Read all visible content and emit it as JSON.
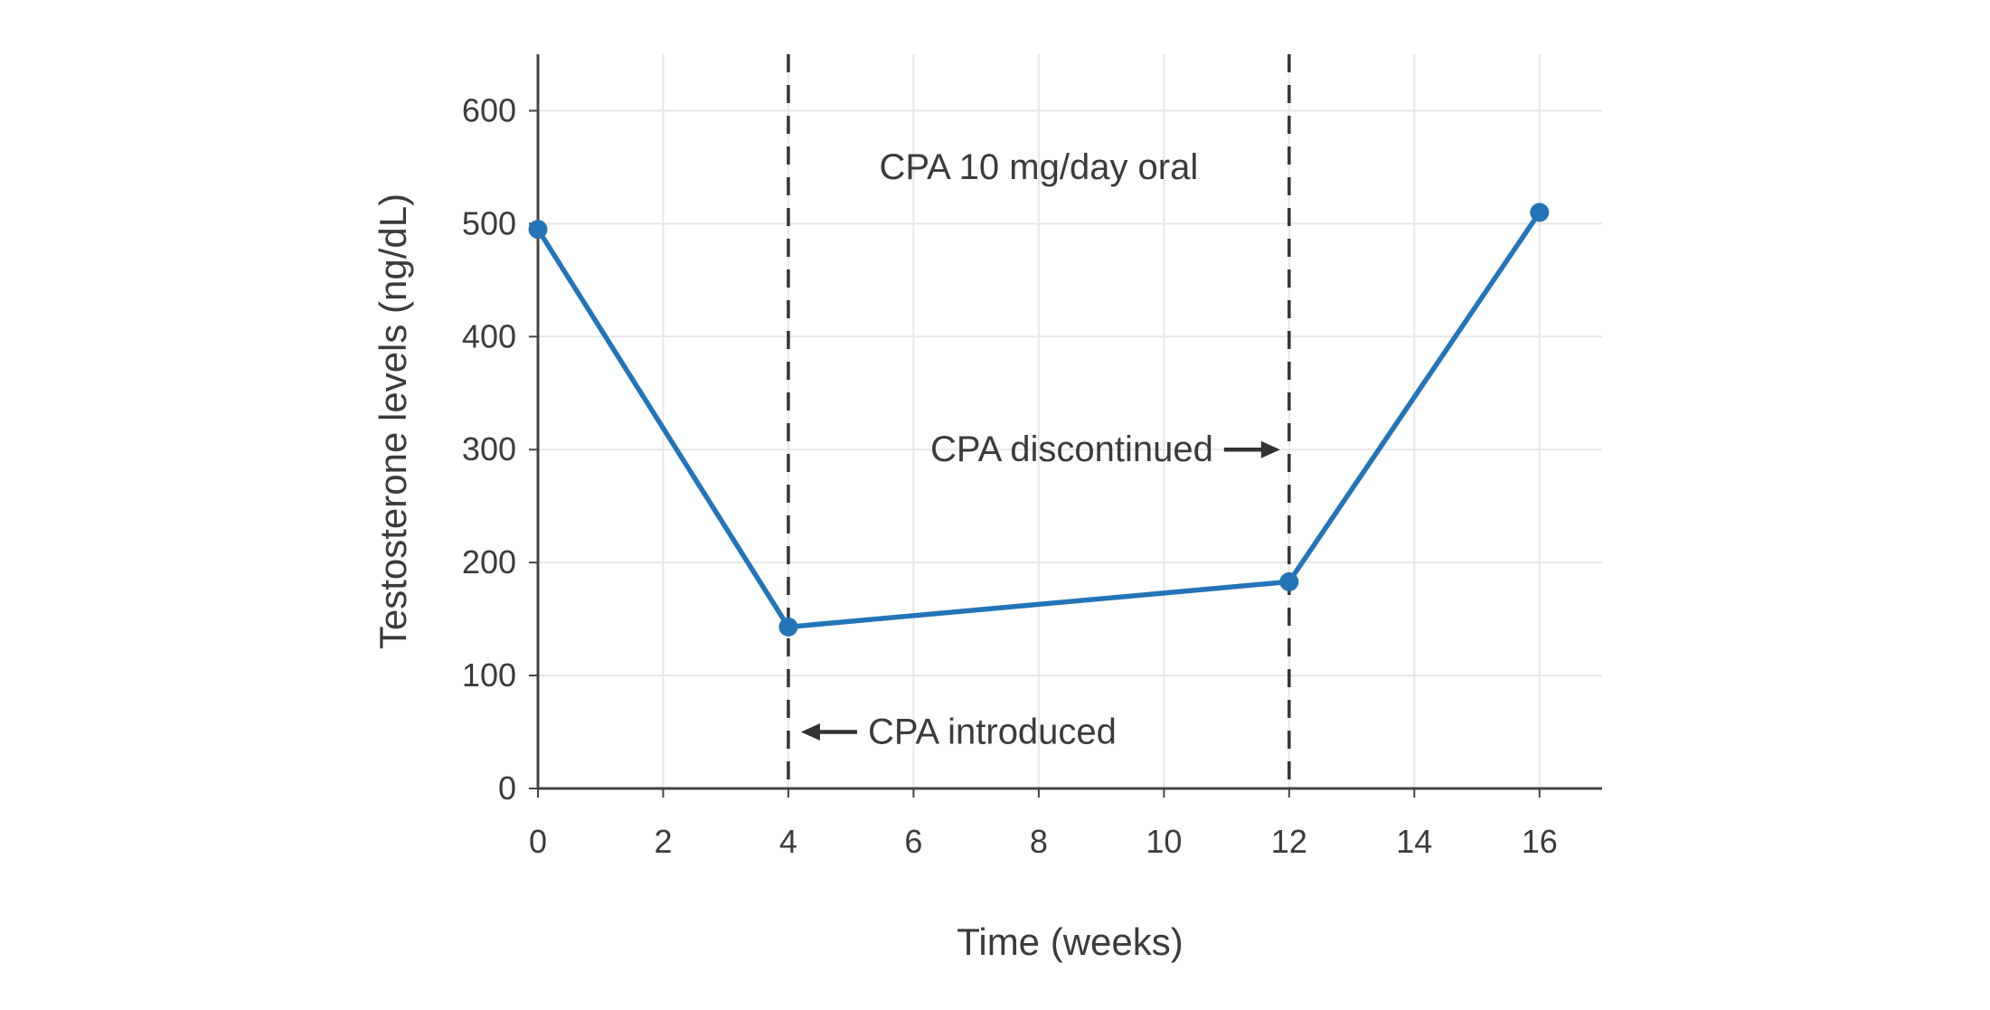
{
  "chart_data": {
    "type": "line",
    "series_name": "Testosterone levels",
    "x": [
      0,
      4,
      12,
      16
    ],
    "y": [
      495,
      143,
      183,
      510
    ],
    "line_color": "#2474b7",
    "xlabel": "Time (weeks)",
    "ylabel": "Testosterone levels (ng/dL)",
    "xticks": [
      0,
      2,
      4,
      6,
      8,
      10,
      12,
      14,
      16
    ],
    "yticks": [
      0,
      100,
      200,
      300,
      400,
      500,
      600
    ],
    "xlim": [
      0,
      17
    ],
    "ylim": [
      0,
      650
    ],
    "grid": true,
    "legend": "none",
    "vlines": [
      {
        "x": 4,
        "style": "dashed",
        "color": "#333333"
      },
      {
        "x": 12,
        "style": "dashed",
        "color": "#333333"
      }
    ],
    "annotations": [
      {
        "text": "CPA 10 mg/day oral",
        "x": 8,
        "y": 550,
        "arrow": "none"
      },
      {
        "text": "CPA introduced",
        "x": 4,
        "y": 50,
        "arrow": "left"
      },
      {
        "text": "CPA discontinued",
        "x": 12,
        "y": 300,
        "arrow": "right"
      }
    ],
    "arrow_color": "#333333"
  }
}
